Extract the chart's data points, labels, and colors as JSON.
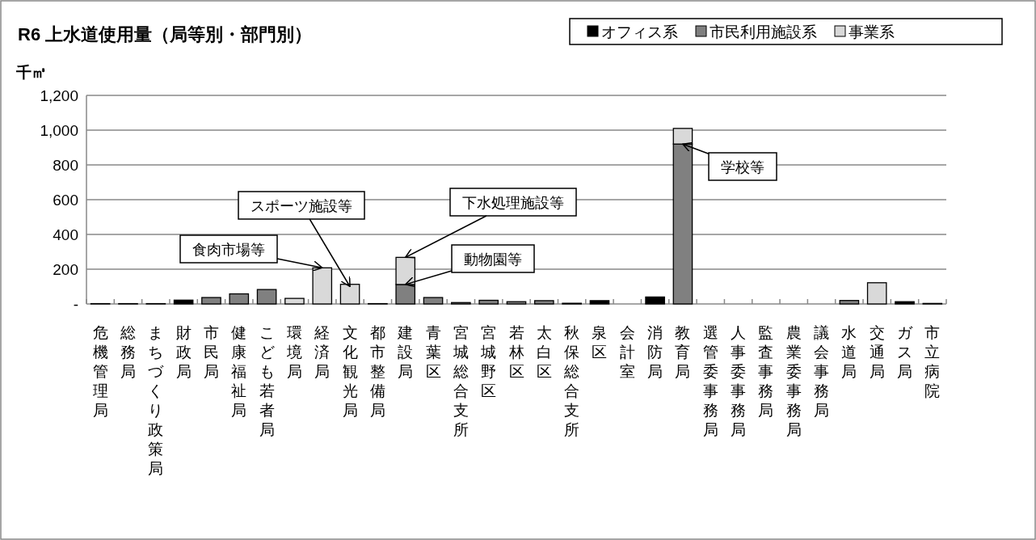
{
  "chart_data": {
    "type": "bar",
    "title": "R6 上水道使用量（局等別・部門別）",
    "ylabel": "千㎥",
    "stacked": true,
    "grid": "y",
    "legend": "top right",
    "categories": [
      "危機管理局",
      "総務局",
      "まちづくり政策局",
      "財政局",
      "市民局",
      "健康福祉局",
      "こども若者局",
      "環境局",
      "経済局",
      "文化観光局",
      "都市整備局",
      "建設局",
      "青葉区",
      "宮城総合支所",
      "宮城野区",
      "若林区",
      "太白区",
      "秋保総合支所",
      "泉区",
      "会計室",
      "消防局",
      "教育局",
      "選管委事務局",
      "人事委事務局",
      "監査事務局",
      "農業委事務局",
      "議会事務局",
      "水道局",
      "交通局",
      "ガス局",
      "市立病院"
    ],
    "series": [
      {
        "name": "オフィス系",
        "color": "#000000",
        "values": [
          null,
          null,
          null,
          22,
          null,
          null,
          null,
          null,
          null,
          null,
          null,
          null,
          null,
          null,
          null,
          null,
          null,
          null,
          19,
          null,
          40,
          null,
          null,
          null,
          null,
          null,
          null,
          null,
          null,
          13,
          null
        ]
      },
      {
        "name": "市民利用施設系",
        "color": "#808080",
        "values": [
          2,
          2,
          2,
          null,
          37,
          58,
          83,
          null,
          null,
          null,
          2,
          112,
          37,
          8,
          21,
          13,
          19,
          4,
          null,
          null,
          null,
          920,
          null,
          null,
          null,
          null,
          null,
          20,
          null,
          null,
          3
        ]
      },
      {
        "name": "事業系",
        "color": "#d9d9d9",
        "values": [
          null,
          null,
          null,
          null,
          null,
          null,
          null,
          32,
          208,
          113,
          null,
          156,
          null,
          null,
          null,
          null,
          null,
          null,
          null,
          null,
          null,
          90,
          null,
          null,
          null,
          null,
          null,
          null,
          122,
          null,
          null
        ]
      }
    ],
    "ylim": [
      0,
      1200
    ],
    "yticks": [
      {
        "value": 0,
        "label": "-"
      },
      {
        "value": 200,
        "label": "200"
      },
      {
        "value": 400,
        "label": "400"
      },
      {
        "value": 600,
        "label": "600"
      },
      {
        "value": 800,
        "label": "800"
      },
      {
        "value": 1000,
        "label": "1,000"
      },
      {
        "value": 1200,
        "label": "1,200"
      }
    ],
    "annotations": [
      {
        "text": "食肉市場等",
        "x": "経済局",
        "y": 208
      },
      {
        "text": "スポーツ施設等",
        "x": "文化観光局",
        "y": 100
      },
      {
        "text": "下水処理施設等",
        "x": "建設局",
        "y": 268
      },
      {
        "text": "動物園等",
        "x": "建設局",
        "y": 112
      },
      {
        "text": "学校等",
        "x": "教育局",
        "y": 920
      }
    ]
  }
}
